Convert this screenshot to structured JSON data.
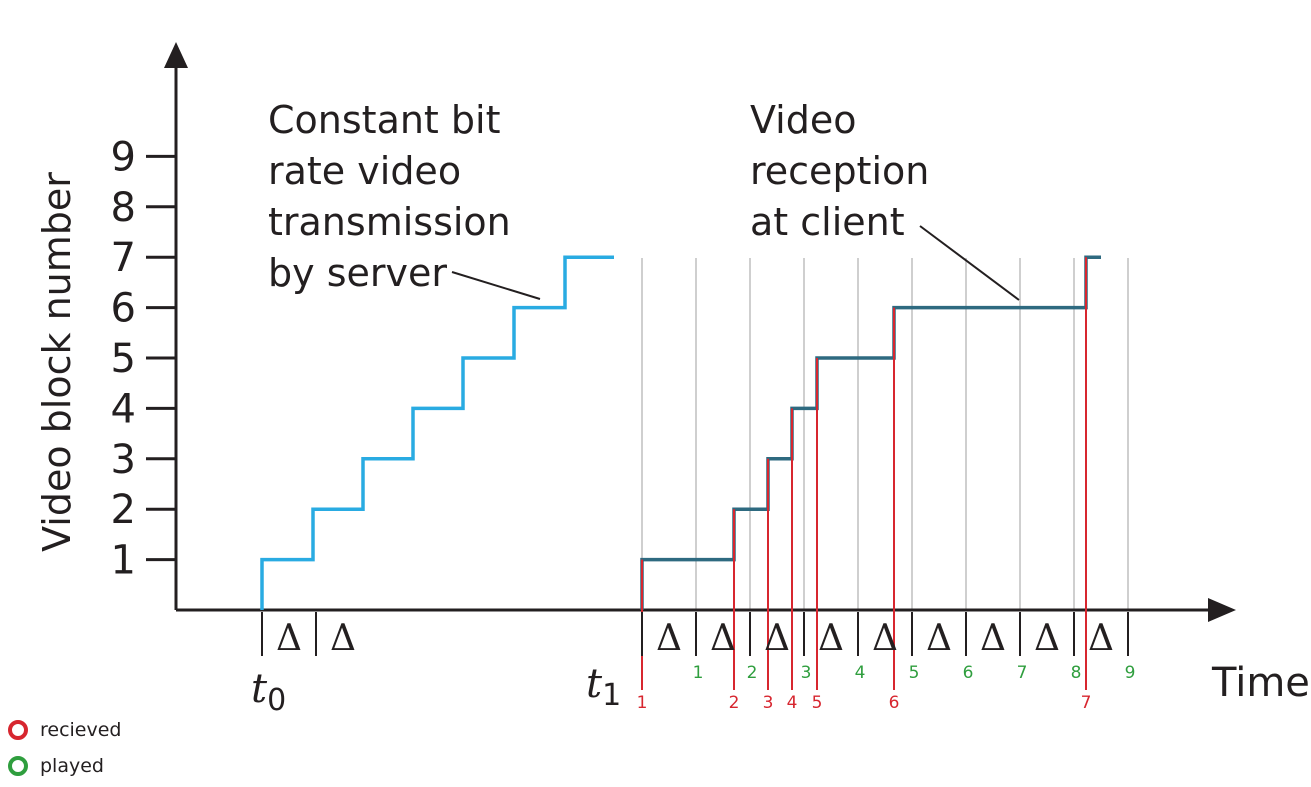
{
  "axes": {
    "ylabel": "Video block number",
    "xlabel": "Time",
    "yticks": [
      "1",
      "2",
      "3",
      "4",
      "5",
      "6",
      "7",
      "8",
      "9"
    ]
  },
  "annotations": {
    "server": [
      "Constant bit",
      "rate video",
      "transmission",
      "by server"
    ],
    "client": [
      "Video",
      "reception",
      "at client"
    ]
  },
  "time_marks": {
    "t0_base": "t",
    "t0_sub": "0",
    "t1_base": "t",
    "t1_sub": "1",
    "delta": "Δ"
  },
  "received_labels": [
    "1",
    "2",
    "3",
    "4",
    "5",
    "6",
    "7"
  ],
  "played_labels": [
    "1",
    "2",
    "3",
    "4",
    "5",
    "6",
    "7",
    "8",
    "9"
  ],
  "legend": {
    "received": "recieved",
    "played": "played"
  },
  "colors": {
    "server_line": "#29abe2",
    "client_line": "#2e6a80",
    "received": "#d7262f",
    "played": "#2f9e3e",
    "grid": "#cfcfcf",
    "axis": "#231f20"
  }
}
